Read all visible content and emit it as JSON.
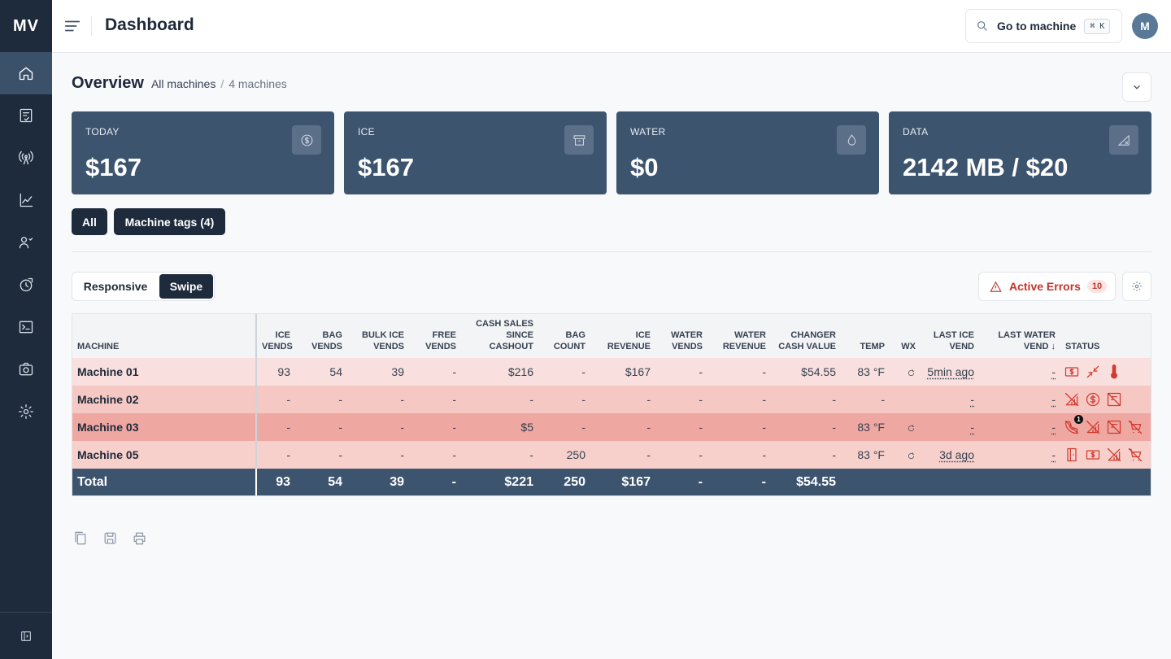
{
  "app": {
    "logo": "MV",
    "title": "Dashboard"
  },
  "header": {
    "search_label": "Go to machine",
    "shortcut": "⌘ K",
    "avatar_initial": "M"
  },
  "sidebar": {
    "items": [
      {
        "name": "home-icon",
        "active": true
      },
      {
        "name": "checklist-icon"
      },
      {
        "name": "antenna-icon"
      },
      {
        "name": "analytics-icon"
      },
      {
        "name": "users-icon"
      },
      {
        "name": "history-icon"
      },
      {
        "name": "terminal-icon"
      },
      {
        "name": "camera-icon"
      },
      {
        "name": "settings-icon"
      }
    ]
  },
  "overview": {
    "title": "Overview",
    "crumb_all": "All machines",
    "crumb_sep": "/",
    "crumb_count": "4 machines"
  },
  "cards": [
    {
      "label": "TODAY",
      "value": "$167",
      "icon": "dollar-icon"
    },
    {
      "label": "ICE",
      "value": "$167",
      "icon": "archive-icon"
    },
    {
      "label": "WATER",
      "value": "$0",
      "icon": "droplet-icon"
    },
    {
      "label": "DATA",
      "value": "2142 MB / $20",
      "icon": "signal-icon"
    }
  ],
  "filters": {
    "all": "All",
    "tags": "Machine tags (4)"
  },
  "view_toggle": {
    "responsive": "Responsive",
    "swipe": "Swipe",
    "selected": "Swipe"
  },
  "errors": {
    "label": "Active Errors",
    "count": "10"
  },
  "table": {
    "headers": [
      "MACHINE",
      "ICE VENDS",
      "BAG VENDS",
      "BULK ICE VENDS",
      "FREE VENDS",
      "CASH SALES SINCE CASHOUT",
      "BAG COUNT",
      "ICE REVENUE",
      "WATER VENDS",
      "WATER REVENUE",
      "CHANGER CASH VALUE",
      "TEMP",
      "WX",
      "LAST ICE VEND",
      "LAST WATER VEND",
      "STATUS"
    ],
    "rows": [
      {
        "machine": "Machine 01",
        "cells": [
          "93",
          "54",
          "39",
          "-",
          "$216",
          "-",
          "$167",
          "-",
          "-",
          "$54.55",
          "83 °F"
        ],
        "wx": true,
        "last_ice": "5min ago",
        "last_water": "-",
        "status_icons": [
          "cash-icon",
          "collapse-icon",
          "thermometer-icon"
        ]
      },
      {
        "machine": "Machine 02",
        "cells": [
          "-",
          "-",
          "-",
          "-",
          "-",
          "-",
          "-",
          "-",
          "-",
          "-",
          "-"
        ],
        "wx": false,
        "last_ice": "-",
        "last_water": "-",
        "status_icons": [
          "no-signal-icon",
          "coin-icon",
          "no-bill-icon"
        ]
      },
      {
        "machine": "Machine 03",
        "cells": [
          "-",
          "-",
          "-",
          "-",
          "$5",
          "-",
          "-",
          "-",
          "-",
          "-",
          "83 °F"
        ],
        "wx": true,
        "last_ice": "-",
        "last_water": "-",
        "status_icons": [
          "no-phone-icon",
          "no-signal-icon",
          "no-bill-icon",
          "no-cart-icon"
        ],
        "badge": "1"
      },
      {
        "machine": "Machine 05",
        "cells": [
          "-",
          "-",
          "-",
          "-",
          "-",
          "250",
          "-",
          "-",
          "-",
          "-",
          "83 °F"
        ],
        "wx": true,
        "last_ice": "3d ago",
        "last_water": "-",
        "status_icons": [
          "door-icon",
          "cash-icon",
          "no-signal-icon",
          "no-cart-icon"
        ]
      }
    ],
    "total": {
      "label": "Total",
      "cells": [
        "93",
        "54",
        "39",
        "-",
        "$221",
        "250",
        "$167",
        "-",
        "-",
        "$54.55"
      ]
    }
  },
  "tools": [
    "copy-icon",
    "save-icon",
    "print-icon"
  ]
}
